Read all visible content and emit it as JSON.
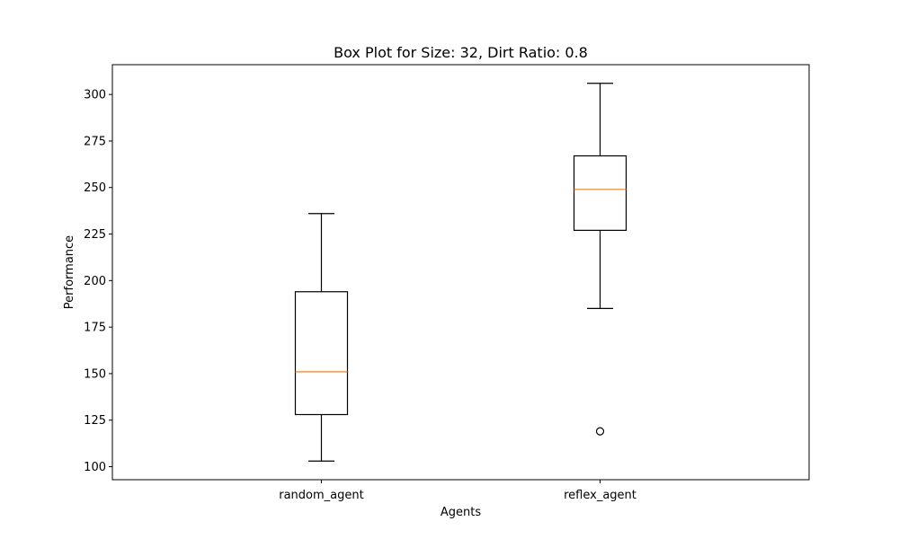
{
  "chart_data": {
    "type": "box",
    "title": "Box Plot for Size: 32, Dirt Ratio: 0.8",
    "xlabel": "Agents",
    "ylabel": "Performance",
    "ylim": [
      93,
      316
    ],
    "yticks": [
      100,
      125,
      150,
      175,
      200,
      225,
      250,
      275,
      300
    ],
    "grid": false,
    "categories": [
      "random_agent",
      "reflex_agent"
    ],
    "boxes": [
      {
        "category": "random_agent",
        "whisker_low": 103,
        "q1": 128,
        "median": 151,
        "q3": 194,
        "whisker_high": 236,
        "outliers": []
      },
      {
        "category": "reflex_agent",
        "whisker_low": 185,
        "q1": 227,
        "median": 249,
        "q3": 267,
        "whisker_high": 306,
        "outliers": [
          119
        ]
      }
    ],
    "colors": {
      "box": "#000000",
      "median": "#ff7f0e",
      "background": "#ffffff"
    }
  }
}
